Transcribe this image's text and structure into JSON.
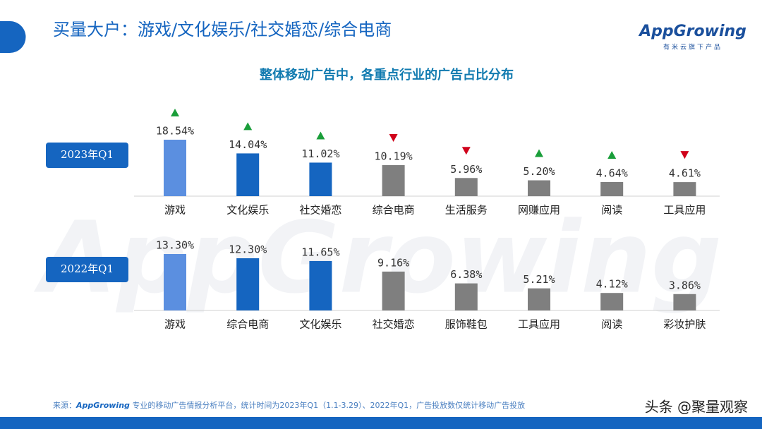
{
  "header": {
    "title": "买量大户：游戏/文化娱乐/社交婚恋/综合电商"
  },
  "logo": {
    "brand": "AppGrowing",
    "tagline": "有米云旗下产品"
  },
  "subtitle": "整体移动广告中，各重点行业的广告占比分布",
  "watermark": "AppGrowing",
  "chart_data": [
    {
      "type": "bar",
      "label": "2023年Q1",
      "categories": [
        "游戏",
        "文化娱乐",
        "社交婚恋",
        "综合电商",
        "生活服务",
        "网赚应用",
        "阅读",
        "工具应用"
      ],
      "values": [
        18.54,
        14.04,
        11.02,
        10.19,
        5.96,
        5.2,
        4.64,
        4.61
      ],
      "value_labels": [
        "18.54%",
        "14.04%",
        "11.02%",
        "10.19%",
        "5.96%",
        "5.20%",
        "4.64%",
        "4.61%"
      ],
      "colors": [
        "#5b8fe0",
        "#1565c0",
        "#1565c0",
        "#7f7f7f",
        "#7f7f7f",
        "#7f7f7f",
        "#7f7f7f",
        "#7f7f7f"
      ],
      "trend": [
        "up",
        "up",
        "up",
        "down",
        "down",
        "up",
        "up",
        "down"
      ]
    },
    {
      "type": "bar",
      "label": "2022年Q1",
      "categories": [
        "游戏",
        "综合电商",
        "文化娱乐",
        "社交婚恋",
        "服饰鞋包",
        "工具应用",
        "阅读",
        "彩妆护肤"
      ],
      "values": [
        13.3,
        12.3,
        11.65,
        9.16,
        6.38,
        5.21,
        4.12,
        3.86
      ],
      "value_labels": [
        "13.30%",
        "12.30%",
        "11.65%",
        "9.16%",
        "6.38%",
        "5.21%",
        "4.12%",
        "3.86%"
      ],
      "colors": [
        "#5b8fe0",
        "#1565c0",
        "#1565c0",
        "#7f7f7f",
        "#7f7f7f",
        "#7f7f7f",
        "#7f7f7f",
        "#7f7f7f"
      ]
    }
  ],
  "source": {
    "prefix": "来源：",
    "brand": "AppGrowing",
    "text": " 专业的移动广告情报分析平台，统计时间为2023年Q1（1.1-3.29）、2022年Q1，广告投放数仅统计移动广告投放"
  },
  "credit": "头条 @聚量观察"
}
